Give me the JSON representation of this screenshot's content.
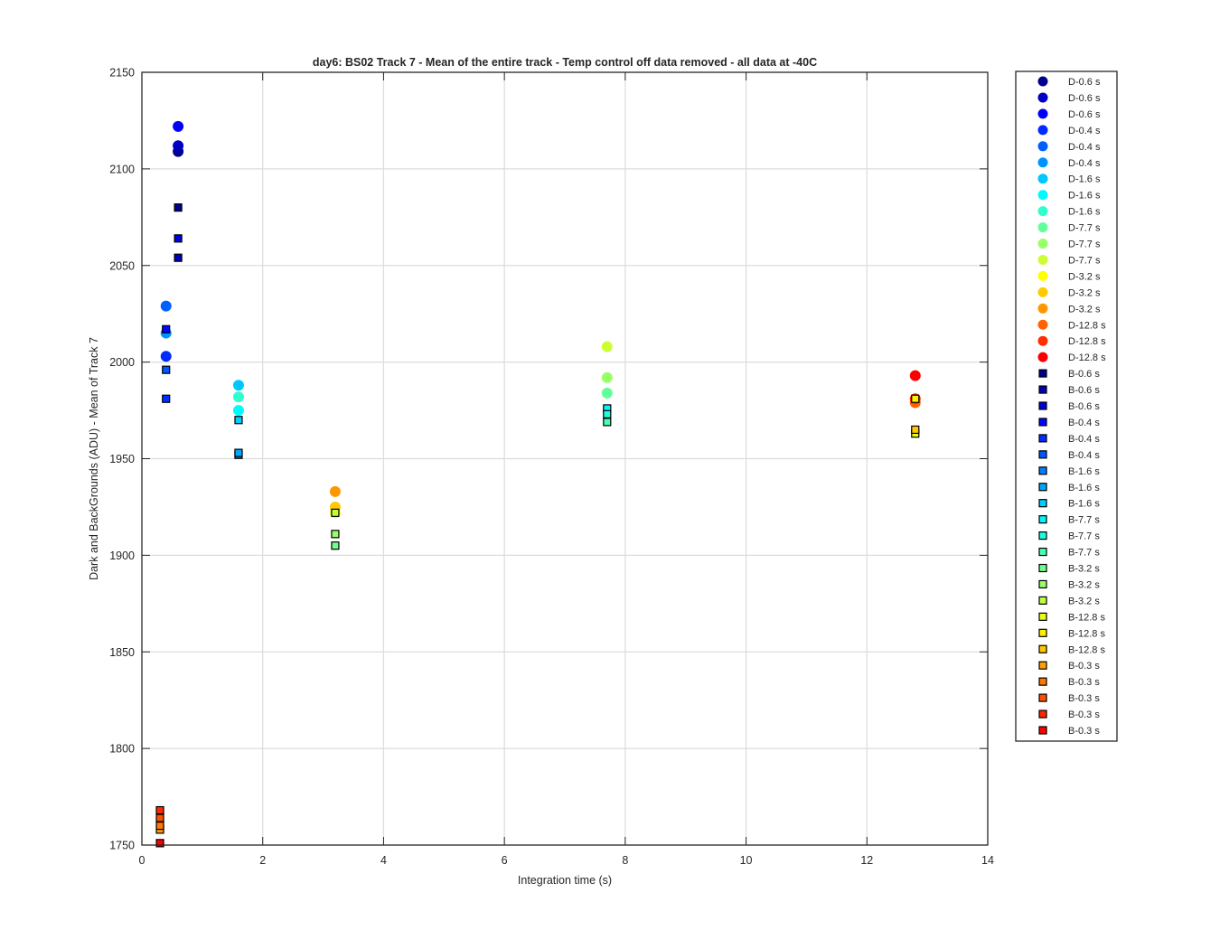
{
  "chart_data": {
    "type": "scatter",
    "title": "day6: BS02  Track 7 - Mean of the entire track - Temp control off data removed - all data at -40C",
    "xlabel": "Integration time (s)",
    "ylabel": "Dark and BackGrounds (ADU) - Mean of Track 7",
    "xlim": [
      0,
      14
    ],
    "ylim": [
      1750,
      2150
    ],
    "xticks": [
      "0",
      "2",
      "4",
      "6",
      "8",
      "10",
      "12",
      "14"
    ],
    "yticks": [
      "1750",
      "1800",
      "1850",
      "1900",
      "1950",
      "2000",
      "2050",
      "2100",
      "2150"
    ],
    "grid": true,
    "legend_position": "outside-right",
    "series": [
      {
        "name": "D-0.6 s",
        "marker": "circle",
        "color": "#00008f",
        "x": [
          0.6
        ],
        "y": [
          2109
        ]
      },
      {
        "name": "D-0.6 s",
        "marker": "circle",
        "color": "#0000c3",
        "x": [
          0.6
        ],
        "y": [
          2112
        ]
      },
      {
        "name": "D-0.6 s",
        "marker": "circle",
        "color": "#0000f7",
        "x": [
          0.6
        ],
        "y": [
          2122
        ]
      },
      {
        "name": "D-0.4 s",
        "marker": "circle",
        "color": "#002bff",
        "x": [
          0.4
        ],
        "y": [
          2003
        ]
      },
      {
        "name": "D-0.4 s",
        "marker": "circle",
        "color": "#005fff",
        "x": [
          0.4
        ],
        "y": [
          2029
        ]
      },
      {
        "name": "D-0.4 s",
        "marker": "circle",
        "color": "#0093ff",
        "x": [
          0.4
        ],
        "y": [
          2015
        ]
      },
      {
        "name": "D-1.6 s",
        "marker": "circle",
        "color": "#00c7ff",
        "x": [
          1.6
        ],
        "y": [
          1988
        ]
      },
      {
        "name": "D-1.6 s",
        "marker": "circle",
        "color": "#00fbff",
        "x": [
          1.6
        ],
        "y": [
          1975
        ]
      },
      {
        "name": "D-1.6 s",
        "marker": "circle",
        "color": "#2fffcf",
        "x": [
          1.6
        ],
        "y": [
          1982
        ]
      },
      {
        "name": "D-7.7 s",
        "marker": "circle",
        "color": "#63ff9b",
        "x": [
          7.7
        ],
        "y": [
          1984
        ]
      },
      {
        "name": "D-7.7 s",
        "marker": "circle",
        "color": "#97ff67",
        "x": [
          7.7
        ],
        "y": [
          1992
        ]
      },
      {
        "name": "D-7.7 s",
        "marker": "circle",
        "color": "#cbff33",
        "x": [
          7.7
        ],
        "y": [
          2008
        ]
      },
      {
        "name": "D-3.2 s",
        "marker": "circle",
        "color": "#ffff00",
        "x": [
          3.2
        ],
        "y": [
          1922
        ]
      },
      {
        "name": "D-3.2 s",
        "marker": "circle",
        "color": "#ffcb00",
        "x": [
          3.2
        ],
        "y": [
          1925
        ]
      },
      {
        "name": "D-3.2 s",
        "marker": "circle",
        "color": "#ff9700",
        "x": [
          3.2
        ],
        "y": [
          1933
        ]
      },
      {
        "name": "D-12.8 s",
        "marker": "circle",
        "color": "#ff6300",
        "x": [
          12.8
        ],
        "y": [
          1979
        ]
      },
      {
        "name": "D-12.8 s",
        "marker": "circle",
        "color": "#ff2f00",
        "x": [
          12.8
        ],
        "y": [
          1981
        ]
      },
      {
        "name": "D-12.8 s",
        "marker": "circle",
        "color": "#fb0000",
        "x": [
          12.8
        ],
        "y": [
          1993
        ]
      },
      {
        "name": "B-0.6 s",
        "marker": "square",
        "color": "#00008f",
        "x": [
          0.6
        ],
        "y": [
          2080
        ]
      },
      {
        "name": "B-0.6 s",
        "marker": "square",
        "color": "#0000b7",
        "x": [
          0.6
        ],
        "y": [
          2054
        ]
      },
      {
        "name": "B-0.6 s",
        "marker": "square",
        "color": "#0000df",
        "x": [
          0.6
        ],
        "y": [
          2064
        ]
      },
      {
        "name": "B-0.4 s",
        "marker": "square",
        "color": "#0007ff",
        "x": [
          0.4
        ],
        "y": [
          2017
        ]
      },
      {
        "name": "B-0.4 s",
        "marker": "square",
        "color": "#002fff",
        "x": [
          0.4
        ],
        "y": [
          1981
        ]
      },
      {
        "name": "B-0.4 s",
        "marker": "square",
        "color": "#0057ff",
        "x": [
          0.4
        ],
        "y": [
          1996
        ]
      },
      {
        "name": "B-1.6 s",
        "marker": "square",
        "color": "#007fff",
        "x": [
          1.6
        ],
        "y": [
          1952
        ]
      },
      {
        "name": "B-1.6 s",
        "marker": "square",
        "color": "#00a7ff",
        "x": [
          1.6
        ],
        "y": [
          1953
        ]
      },
      {
        "name": "B-1.6 s",
        "marker": "square",
        "color": "#00cfff",
        "x": [
          1.6
        ],
        "y": [
          1970
        ]
      },
      {
        "name": "B-7.7 s",
        "marker": "square",
        "color": "#00f7ff",
        "x": [
          7.7
        ],
        "y": [
          1976
        ]
      },
      {
        "name": "B-7.7 s",
        "marker": "square",
        "color": "#1fffdf",
        "x": [
          7.7
        ],
        "y": [
          1973
        ]
      },
      {
        "name": "B-7.7 s",
        "marker": "square",
        "color": "#47ffb7",
        "x": [
          7.7
        ],
        "y": [
          1969
        ]
      },
      {
        "name": "B-3.2 s",
        "marker": "square",
        "color": "#6fff8f",
        "x": [
          3.2
        ],
        "y": [
          1905
        ]
      },
      {
        "name": "B-3.2 s",
        "marker": "square",
        "color": "#97ff67",
        "x": [
          3.2
        ],
        "y": [
          1911
        ]
      },
      {
        "name": "B-3.2 s",
        "marker": "square",
        "color": "#bfff3f",
        "x": [
          3.2
        ],
        "y": [
          1922
        ]
      },
      {
        "name": "B-12.8 s",
        "marker": "square",
        "color": "#e7ff17",
        "x": [
          12.8
        ],
        "y": [
          1963
        ]
      },
      {
        "name": "B-12.8 s",
        "marker": "square",
        "color": "#fff000",
        "x": [
          12.8
        ],
        "y": [
          1981
        ]
      },
      {
        "name": "B-12.8 s",
        "marker": "square",
        "color": "#ffc800",
        "x": [
          12.8
        ],
        "y": [
          1965
        ]
      },
      {
        "name": "B-0.3 s",
        "marker": "square",
        "color": "#ffa000",
        "x": [
          0.3
        ],
        "y": [
          1758
        ]
      },
      {
        "name": "B-0.3 s",
        "marker": "square",
        "color": "#ff7800",
        "x": [
          0.3
        ],
        "y": [
          1760
        ]
      },
      {
        "name": "B-0.3 s",
        "marker": "square",
        "color": "#ff5000",
        "x": [
          0.3
        ],
        "y": [
          1764
        ]
      },
      {
        "name": "B-0.3 s",
        "marker": "square",
        "color": "#ff2800",
        "x": [
          0.3
        ],
        "y": [
          1768
        ]
      },
      {
        "name": "B-0.3 s",
        "marker": "square",
        "color": "#ff0000",
        "x": [
          0.3
        ],
        "y": [
          1751
        ]
      }
    ],
    "legend": [
      {
        "label": "D-0.6 s",
        "marker": "circle",
        "color": "#00008f"
      },
      {
        "label": "D-0.6 s",
        "marker": "circle",
        "color": "#0000c3"
      },
      {
        "label": "D-0.6 s",
        "marker": "circle",
        "color": "#0000f7"
      },
      {
        "label": "D-0.4 s",
        "marker": "circle",
        "color": "#002bff"
      },
      {
        "label": "D-0.4 s",
        "marker": "circle",
        "color": "#005fff"
      },
      {
        "label": "D-0.4 s",
        "marker": "circle",
        "color": "#0093ff"
      },
      {
        "label": "D-1.6 s",
        "marker": "circle",
        "color": "#00c7ff"
      },
      {
        "label": "D-1.6 s",
        "marker": "circle",
        "color": "#00fbff"
      },
      {
        "label": "D-1.6 s",
        "marker": "circle",
        "color": "#2fffcf"
      },
      {
        "label": "D-7.7 s",
        "marker": "circle",
        "color": "#63ff9b"
      },
      {
        "label": "D-7.7 s",
        "marker": "circle",
        "color": "#97ff67"
      },
      {
        "label": "D-7.7 s",
        "marker": "circle",
        "color": "#cbff33"
      },
      {
        "label": "D-3.2 s",
        "marker": "circle",
        "color": "#ffff00"
      },
      {
        "label": "D-3.2 s",
        "marker": "circle",
        "color": "#ffcb00"
      },
      {
        "label": "D-3.2 s",
        "marker": "circle",
        "color": "#ff9700"
      },
      {
        "label": "D-12.8 s",
        "marker": "circle",
        "color": "#ff6300"
      },
      {
        "label": "D-12.8 s",
        "marker": "circle",
        "color": "#ff2f00"
      },
      {
        "label": "D-12.8 s",
        "marker": "circle",
        "color": "#fb0000"
      },
      {
        "label": "B-0.6 s",
        "marker": "square",
        "color": "#00008f"
      },
      {
        "label": "B-0.6 s",
        "marker": "square",
        "color": "#0000b7"
      },
      {
        "label": "B-0.6 s",
        "marker": "square",
        "color": "#0000df"
      },
      {
        "label": "B-0.4 s",
        "marker": "square",
        "color": "#0007ff"
      },
      {
        "label": "B-0.4 s",
        "marker": "square",
        "color": "#002fff"
      },
      {
        "label": "B-0.4 s",
        "marker": "square",
        "color": "#0057ff"
      },
      {
        "label": "B-1.6 s",
        "marker": "square",
        "color": "#007fff"
      },
      {
        "label": "B-1.6 s",
        "marker": "square",
        "color": "#00a7ff"
      },
      {
        "label": "B-1.6 s",
        "marker": "square",
        "color": "#00cfff"
      },
      {
        "label": "B-7.7 s",
        "marker": "square",
        "color": "#00f7ff"
      },
      {
        "label": "B-7.7 s",
        "marker": "square",
        "color": "#1fffdf"
      },
      {
        "label": "B-7.7 s",
        "marker": "square",
        "color": "#47ffb7"
      },
      {
        "label": "B-3.2 s",
        "marker": "square",
        "color": "#6fff8f"
      },
      {
        "label": "B-3.2 s",
        "marker": "square",
        "color": "#97ff67"
      },
      {
        "label": "B-3.2 s",
        "marker": "square",
        "color": "#bfff3f"
      },
      {
        "label": "B-12.8 s",
        "marker": "square",
        "color": "#e7ff17"
      },
      {
        "label": "B-12.8 s",
        "marker": "square",
        "color": "#fff000"
      },
      {
        "label": "B-12.8 s",
        "marker": "square",
        "color": "#ffc800"
      },
      {
        "label": "B-0.3 s",
        "marker": "square",
        "color": "#ffa000"
      },
      {
        "label": "B-0.3 s",
        "marker": "square",
        "color": "#ff7800"
      },
      {
        "label": "B-0.3 s",
        "marker": "square",
        "color": "#ff5000"
      },
      {
        "label": "B-0.3 s",
        "marker": "square",
        "color": "#ff2800"
      },
      {
        "label": "B-0.3 s",
        "marker": "square",
        "color": "#ff0000"
      }
    ]
  }
}
